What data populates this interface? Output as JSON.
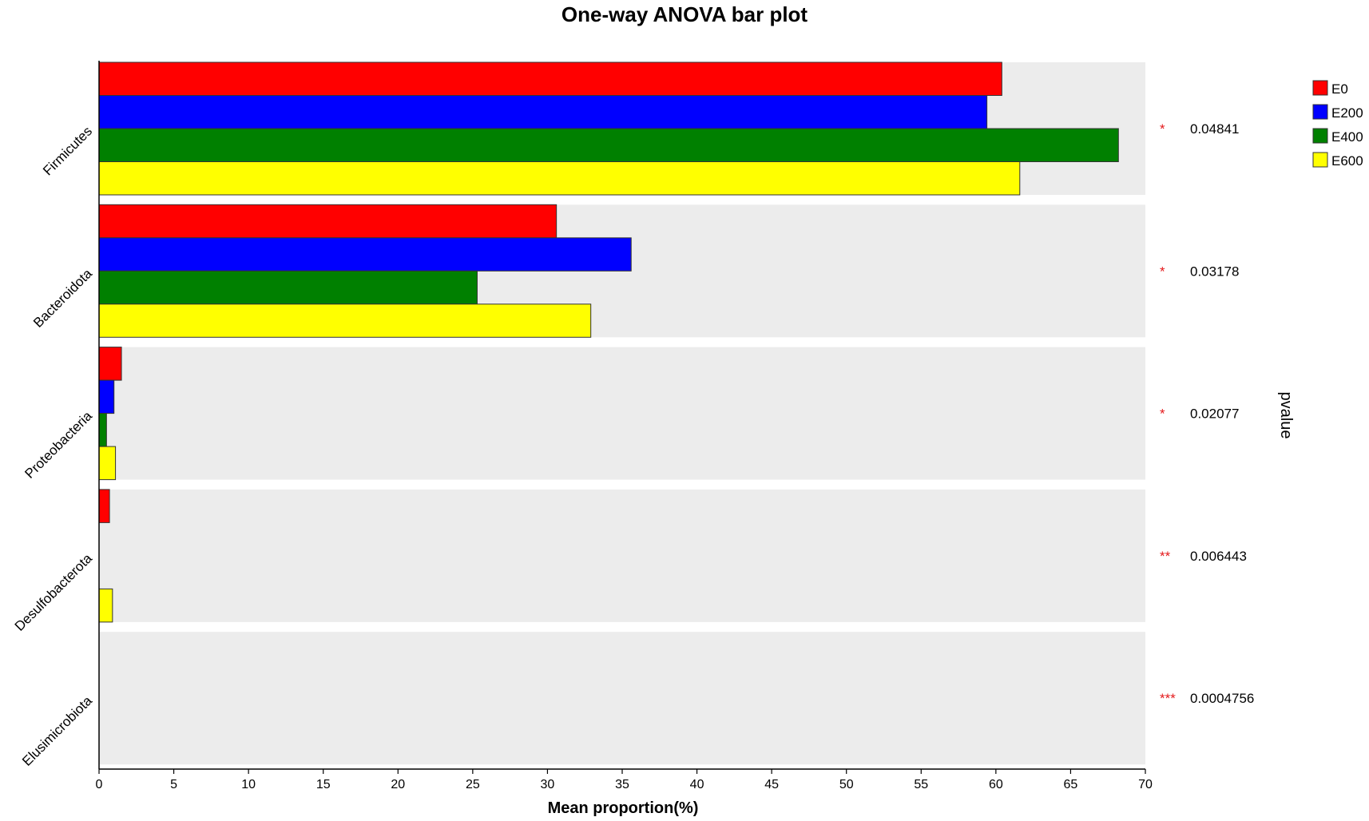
{
  "chart_data": {
    "type": "bar",
    "orientation": "horizontal",
    "title": "One-way ANOVA bar plot",
    "xlabel": "Mean proportion(%)",
    "side_label": "pvalue",
    "xlim": [
      0,
      70
    ],
    "xticks": [
      0,
      5,
      10,
      15,
      20,
      25,
      30,
      35,
      40,
      45,
      50,
      55,
      60,
      65,
      70
    ],
    "categories": [
      "Firmicutes",
      "Bacteroidota",
      "Proteobacteria",
      "Desulfobacterota",
      "Elusimicrobiota"
    ],
    "series": [
      {
        "name": "E0",
        "color": "#ff0000",
        "values": [
          60.4,
          30.6,
          1.5,
          0.7,
          0.0
        ]
      },
      {
        "name": "E200",
        "color": "#0000ff",
        "values": [
          59.4,
          35.6,
          1.0,
          0.0,
          0.0
        ]
      },
      {
        "name": "E400",
        "color": "#008000",
        "values": [
          68.2,
          25.3,
          0.5,
          0.0,
          0.0
        ]
      },
      {
        "name": "E600",
        "color": "#ffff00",
        "values": [
          61.6,
          32.9,
          1.1,
          0.9,
          0.0
        ]
      }
    ],
    "pvalues": [
      "0.04841",
      "0.03178",
      "0.02077",
      "0.006443",
      "0.0004756"
    ],
    "significance": [
      "*",
      "*",
      "*",
      "**",
      "***"
    ],
    "legend_position": "top-right",
    "band_color": "#ececec",
    "star_color": "#e41a1c"
  }
}
